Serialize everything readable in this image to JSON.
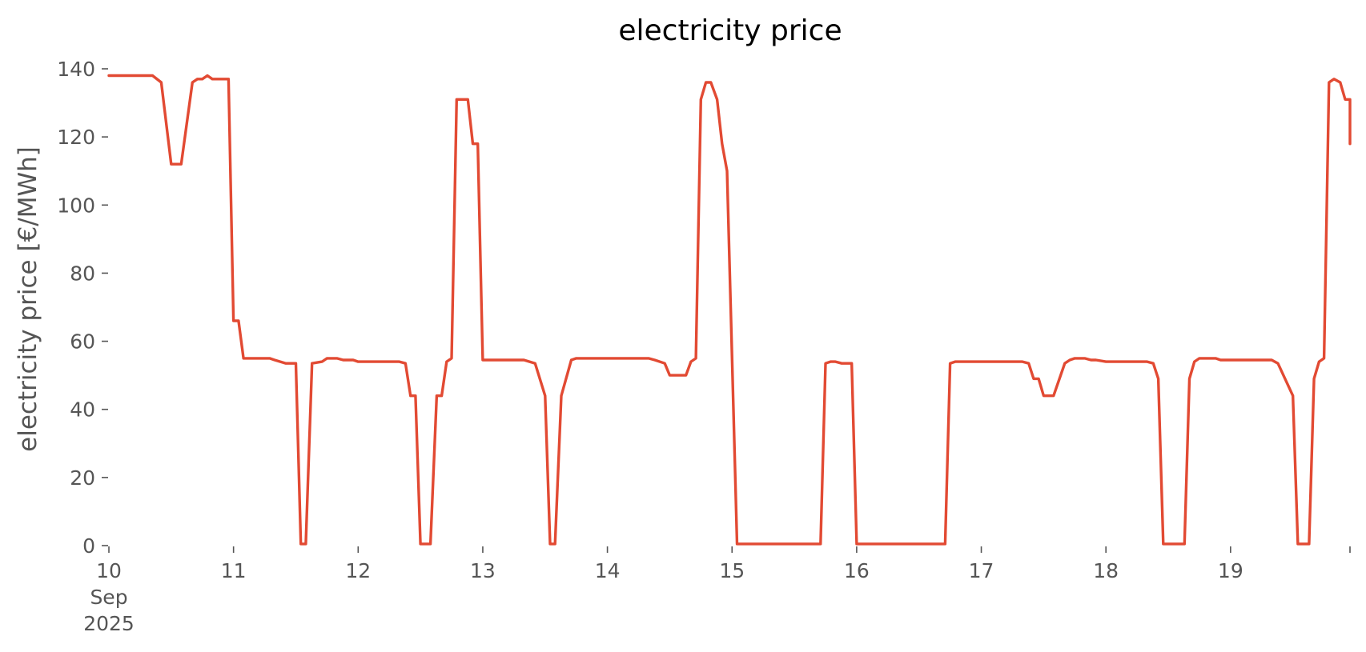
{
  "chart_data": {
    "type": "line",
    "title": "electricity price",
    "xlabel": "",
    "ylabel": "electricity price [€/MWh]",
    "xlim": [
      0,
      9.9583
    ],
    "ylim": [
      0,
      140
    ],
    "yticks": [
      0,
      20,
      40,
      60,
      80,
      100,
      120,
      140
    ],
    "xticks": [
      {
        "x": 0,
        "lines": [
          "10",
          "Sep",
          "2025"
        ]
      },
      {
        "x": 1,
        "lines": [
          "11"
        ]
      },
      {
        "x": 2,
        "lines": [
          "12"
        ]
      },
      {
        "x": 3,
        "lines": [
          "13"
        ]
      },
      {
        "x": 4,
        "lines": [
          "14"
        ]
      },
      {
        "x": 5,
        "lines": [
          "15"
        ]
      },
      {
        "x": 6,
        "lines": [
          "16"
        ]
      },
      {
        "x": 7,
        "lines": [
          "17"
        ]
      },
      {
        "x": 8,
        "lines": [
          "18"
        ]
      },
      {
        "x": 9,
        "lines": [
          "19"
        ]
      },
      {
        "x": 9.9583,
        "lines": [
          ""
        ]
      }
    ],
    "grid": false,
    "color": "#E24A33",
    "series": [
      {
        "name": "",
        "points": [
          [
            0.0,
            138
          ],
          [
            0.35,
            138
          ],
          [
            0.42,
            136
          ],
          [
            0.5,
            112
          ],
          [
            0.58,
            112
          ],
          [
            0.67,
            136
          ],
          [
            0.71,
            137
          ],
          [
            0.75,
            137
          ],
          [
            0.79,
            138
          ],
          [
            0.83,
            137
          ],
          [
            0.96,
            137
          ],
          [
            1.0,
            66
          ],
          [
            1.04,
            66
          ],
          [
            1.08,
            55
          ],
          [
            1.29,
            55
          ],
          [
            1.33,
            54.5
          ],
          [
            1.42,
            53.5
          ],
          [
            1.5,
            53.5
          ],
          [
            1.54,
            0.5
          ],
          [
            1.58,
            0.5
          ],
          [
            1.63,
            53.5
          ],
          [
            1.71,
            54
          ],
          [
            1.75,
            55
          ],
          [
            1.79,
            55
          ],
          [
            1.83,
            55
          ],
          [
            1.88,
            54.5
          ],
          [
            1.96,
            54.5
          ],
          [
            2.0,
            54
          ],
          [
            2.33,
            54
          ],
          [
            2.38,
            53.5
          ],
          [
            2.42,
            44
          ],
          [
            2.46,
            44
          ],
          [
            2.5,
            0.5
          ],
          [
            2.58,
            0.5
          ],
          [
            2.63,
            44
          ],
          [
            2.67,
            44
          ],
          [
            2.71,
            54
          ],
          [
            2.75,
            55
          ],
          [
            2.79,
            131
          ],
          [
            2.88,
            131
          ],
          [
            2.92,
            118
          ],
          [
            2.96,
            118
          ],
          [
            3.0,
            54.5
          ],
          [
            3.33,
            54.5
          ],
          [
            3.42,
            53.5
          ],
          [
            3.5,
            44
          ],
          [
            3.54,
            0.5
          ],
          [
            3.58,
            0.5
          ],
          [
            3.63,
            44
          ],
          [
            3.71,
            54.5
          ],
          [
            3.75,
            55
          ],
          [
            4.33,
            55
          ],
          [
            4.38,
            54.5
          ],
          [
            4.46,
            53.5
          ],
          [
            4.5,
            50
          ],
          [
            4.63,
            50
          ],
          [
            4.67,
            54
          ],
          [
            4.71,
            55
          ],
          [
            4.75,
            131
          ],
          [
            4.79,
            136
          ],
          [
            4.83,
            136
          ],
          [
            4.88,
            131
          ],
          [
            4.92,
            118
          ],
          [
            4.96,
            110
          ],
          [
            5.04,
            0.5
          ],
          [
            5.71,
            0.5
          ],
          [
            5.75,
            53.5
          ],
          [
            5.79,
            54
          ],
          [
            5.83,
            54
          ],
          [
            5.88,
            53.5
          ],
          [
            5.96,
            53.5
          ],
          [
            6.0,
            0.5
          ],
          [
            6.71,
            0.5
          ],
          [
            6.75,
            53.5
          ],
          [
            6.79,
            54
          ],
          [
            7.33,
            54
          ],
          [
            7.38,
            53.5
          ],
          [
            7.42,
            49
          ],
          [
            7.46,
            49
          ],
          [
            7.5,
            44
          ],
          [
            7.58,
            44
          ],
          [
            7.67,
            53.5
          ],
          [
            7.71,
            54.5
          ],
          [
            7.75,
            55
          ],
          [
            7.79,
            55
          ],
          [
            7.83,
            55
          ],
          [
            7.88,
            54.5
          ],
          [
            7.92,
            54.5
          ],
          [
            8.0,
            54
          ],
          [
            8.33,
            54
          ],
          [
            8.38,
            53.5
          ],
          [
            8.42,
            49
          ],
          [
            8.46,
            0.5
          ],
          [
            8.63,
            0.5
          ],
          [
            8.67,
            49
          ],
          [
            8.71,
            54
          ],
          [
            8.75,
            55
          ],
          [
            8.79,
            55
          ],
          [
            8.83,
            55
          ],
          [
            8.88,
            55
          ],
          [
            8.92,
            54.5
          ],
          [
            8.96,
            54.5
          ],
          [
            9.0,
            54.5
          ],
          [
            9.33,
            54.5
          ],
          [
            9.38,
            53.5
          ],
          [
            9.5,
            44
          ],
          [
            9.54,
            0.5
          ],
          [
            9.63,
            0.5
          ],
          [
            9.67,
            49
          ],
          [
            9.71,
            54
          ],
          [
            9.75,
            55
          ],
          [
            9.79,
            136
          ],
          [
            9.83,
            137
          ],
          [
            9.88,
            136
          ],
          [
            9.92,
            131
          ],
          [
            9.96,
            131
          ],
          [
            9.98,
            125
          ],
          [
            10.0,
            118
          ]
        ]
      }
    ]
  }
}
